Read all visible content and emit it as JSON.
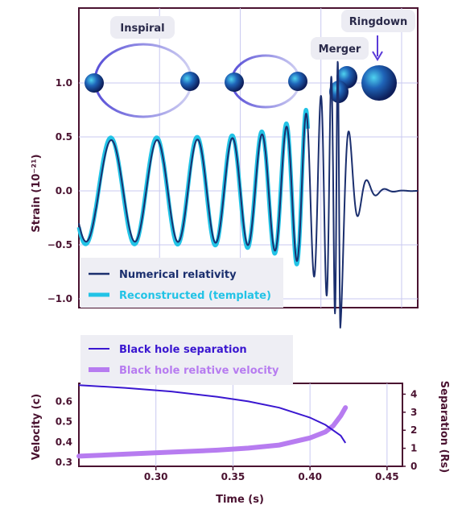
{
  "colors": {
    "numerical": "#1b2f6e",
    "template": "#22c3e6",
    "separation": "#3a17d0",
    "velocity": "#b77cf0",
    "axis": "#4a1230",
    "grid": "#c9c9f0"
  },
  "stages": [
    "Inspiral",
    "Merger",
    "Ringdown"
  ],
  "chart_data": [
    {
      "type": "line",
      "ylabel": "Strain (10⁻²¹)",
      "yticks": [
        "1.0",
        "0.5",
        "0.0",
        "−0.5",
        "−1.0"
      ],
      "ytick_values": [
        1.0,
        0.5,
        0.0,
        -0.5,
        -1.0
      ],
      "xlim": [
        0.25,
        0.46
      ],
      "ylim": [
        -1.5,
        1.5
      ],
      "grid": true,
      "legend_position": "bottom-left",
      "series": [
        {
          "name": "Numerical relativity",
          "description": "chirp from 0.25 s, merger near 0.41 s, ringdown decays to zero by ~0.44 s"
        },
        {
          "name": "Reconstructed (template)",
          "description": "overlaps numerical relativity during inspiral up to ~0.39 s"
        }
      ]
    },
    {
      "type": "line",
      "xlabel": "Time (s)",
      "ylabel_left": "Velocity (c)",
      "ylabel_right": "Separation (Rs)",
      "xticks": [
        "0.30",
        "0.35",
        "0.40",
        "0.45"
      ],
      "xtick_values": [
        0.3,
        0.35,
        0.4,
        0.45
      ],
      "yticks_left": [
        "0.6",
        "0.5",
        "0.4",
        "0.3"
      ],
      "ytick_left_values": [
        0.6,
        0.5,
        0.4,
        0.3
      ],
      "yticks_right": [
        "4",
        "3",
        "2",
        "1",
        "0"
      ],
      "ytick_right_values": [
        4,
        3,
        2,
        1,
        0
      ],
      "xlim": [
        0.25,
        0.46
      ],
      "ylim_left": [
        0.28,
        0.69
      ],
      "ylim_right": [
        0,
        4.6
      ],
      "grid": true,
      "legend_position": "top-left",
      "series": [
        {
          "name": "Black hole separation",
          "axis": "right",
          "x": [
            0.25,
            0.28,
            0.31,
            0.34,
            0.36,
            0.38,
            0.4,
            0.41,
            0.42,
            0.423
          ],
          "y": [
            4.5,
            4.35,
            4.15,
            3.85,
            3.6,
            3.25,
            2.7,
            2.3,
            1.7,
            1.3
          ]
        },
        {
          "name": "Black hole relative velocity",
          "axis": "left",
          "x": [
            0.25,
            0.28,
            0.31,
            0.34,
            0.36,
            0.38,
            0.4,
            0.41,
            0.415,
            0.42,
            0.423
          ],
          "y": [
            0.33,
            0.34,
            0.35,
            0.36,
            0.37,
            0.385,
            0.42,
            0.45,
            0.48,
            0.53,
            0.57
          ]
        }
      ]
    }
  ]
}
